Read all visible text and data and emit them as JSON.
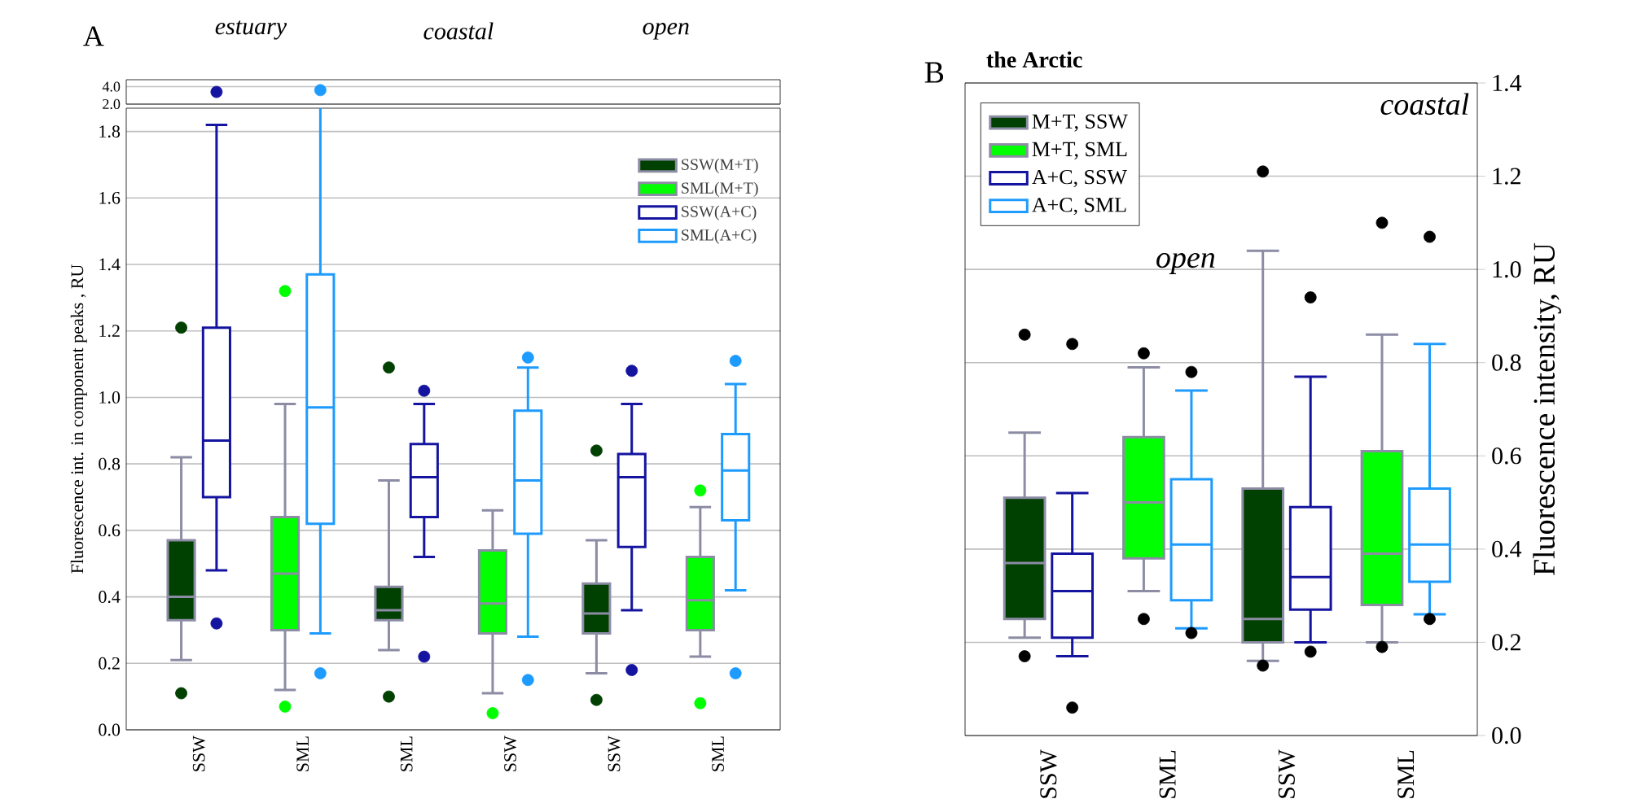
{
  "chart_data": [
    {
      "type": "box",
      "ylabel": "Fluorescence int. in component peaks , RU",
      "annotations": [
        "A",
        "estuary",
        "coastal",
        "open"
      ],
      "categories": [
        "SSW",
        "SML",
        "SML",
        "SSW",
        "SSW",
        "SML"
      ],
      "ylim": [
        0,
        1.87
      ],
      "yticks": [
        {
          "value": 0,
          "label": "0.0"
        },
        {
          "value": 0.2,
          "label": "0.2"
        },
        {
          "value": 0.4,
          "label": "0.4"
        },
        {
          "value": 0.6,
          "label": "0.6"
        },
        {
          "value": 0.8,
          "label": "0.8"
        },
        {
          "value": 1.0,
          "label": "1.0"
        },
        {
          "value": 1.2,
          "label": "1.2"
        },
        {
          "value": 1.4,
          "label": "1.4"
        },
        {
          "value": 1.6,
          "label": "1.6"
        },
        {
          "value": 1.8,
          "label": "1.8"
        }
      ],
      "grid": "y",
      "legend": "top right",
      "series": [
        {
          "name": "SSW(M+T)",
          "color": "#004000",
          "boxes": [
            {
              "low": 0.21,
              "q1": 0.33,
              "median": 0.4,
              "q3": 0.57,
              "high": 0.82,
              "outliers": [
                1.21,
                0.11
              ]
            },
            null,
            {
              "low": 0.24,
              "q1": 0.33,
              "median": 0.36,
              "q3": 0.43,
              "high": 0.75,
              "outliers": [
                1.09,
                0.1
              ]
            },
            null,
            {
              "low": 0.17,
              "q1": 0.29,
              "median": 0.35,
              "q3": 0.44,
              "high": 0.57,
              "outliers": [
                0.84,
                0.09
              ]
            },
            null
          ]
        },
        {
          "name": "SML(M+T)",
          "color": "#00ff00",
          "boxes": [
            null,
            {
              "low": 0.12,
              "q1": 0.3,
              "median": 0.47,
              "q3": 0.64,
              "high": 0.98,
              "outliers": [
                1.32,
                0.07
              ]
            },
            null,
            {
              "low": 0.11,
              "q1": 0.29,
              "median": 0.38,
              "q3": 0.54,
              "high": 0.66,
              "outliers": [
                0.05
              ]
            },
            null,
            {
              "low": 0.22,
              "q1": 0.3,
              "median": 0.39,
              "q3": 0.52,
              "high": 0.67,
              "outliers": [
                0.72,
                0.08
              ]
            }
          ]
        },
        {
          "name": "SSW(A+C)",
          "color": "#1414a0",
          "boxes": [
            {
              "low": 0.48,
              "q1": 0.7,
              "median": 0.87,
              "q3": 1.21,
              "high": 1.82,
              "outliers": [
                0.32
              ]
            },
            null,
            {
              "low": 0.52,
              "q1": 0.64,
              "median": 0.76,
              "q3": 0.86,
              "high": 0.98,
              "outliers": [
                1.02,
                0.22
              ]
            },
            null,
            {
              "low": 0.36,
              "q1": 0.55,
              "median": 0.76,
              "q3": 0.83,
              "high": 0.98,
              "outliers": [
                1.08,
                0.18
              ]
            },
            null
          ]
        },
        {
          "name": "SML(A+C)",
          "color": "#1e9bff",
          "boxes": [
            null,
            {
              "low": 0.29,
              "q1": 0.62,
              "median": 0.97,
              "q3": 1.37,
              "high": 2.4,
              "outliers": [
                0.17
              ]
            },
            null,
            {
              "low": 0.28,
              "q1": 0.59,
              "median": 0.75,
              "q3": 0.96,
              "high": 1.09,
              "outliers": [
                1.12,
                0.15
              ]
            },
            null,
            {
              "low": 0.42,
              "q1": 0.63,
              "median": 0.78,
              "q3": 0.89,
              "high": 1.04,
              "outliers": [
                1.11,
                0.17
              ]
            }
          ]
        }
      ]
    },
    {
      "type": "scatter",
      "categories": [
        null,
        null,
        null,
        null,
        null,
        null
      ],
      "ylim": [
        2.0,
        4.8
      ],
      "yticks": [
        {
          "value": 2.0,
          "label": "2.0"
        },
        {
          "value": 4.0,
          "label": "4.0"
        }
      ],
      "grid": "y",
      "tick_labels": "y",
      "marker": "circle",
      "series": [
        {
          "color": "#1414a0",
          "values": [
            3.4,
            null,
            null,
            null,
            null,
            null
          ]
        },
        {
          "color": "#1e9bff",
          "values": [
            null,
            3.6,
            null,
            null,
            null,
            null
          ]
        }
      ]
    },
    {
      "type": "box",
      "title": "the Arctic",
      "ylabel": "Fluorescence intensity, RU",
      "annotations": [
        "B",
        "open",
        "coastal"
      ],
      "categories": [
        "SSW",
        "SML",
        "SSW",
        "SML"
      ],
      "ylim": [
        0,
        1.4
      ],
      "yticks": [
        {
          "value": 0,
          "label": "0.0"
        },
        {
          "value": 0.2,
          "label": "0.2"
        },
        {
          "value": 0.4,
          "label": "0.4"
        },
        {
          "value": 0.6,
          "label": "0.6"
        },
        {
          "value": 0.8,
          "label": "0.8"
        },
        {
          "value": 1.0,
          "label": "1.0"
        },
        {
          "value": 1.2,
          "label": "1.2"
        },
        {
          "value": 1.4,
          "label": "1.4"
        }
      ],
      "grid": "y",
      "legend": "top left",
      "series": [
        {
          "name": "M+T, SSW",
          "color": "#004000",
          "boxes": [
            {
              "low": 0.21,
              "q1": 0.25,
              "median": 0.37,
              "q3": 0.51,
              "high": 0.65,
              "outliers": [
                0.86,
                0.17
              ]
            },
            null,
            {
              "low": 0.16,
              "q1": 0.2,
              "median": 0.25,
              "q3": 0.53,
              "high": 1.04,
              "outliers": [
                1.21,
                0.15
              ]
            },
            null
          ]
        },
        {
          "name": "M+T, SML",
          "color": "#00ff00",
          "boxes": [
            null,
            {
              "low": 0.31,
              "q1": 0.38,
              "median": 0.5,
              "q3": 0.64,
              "high": 0.79,
              "outliers": [
                0.82,
                0.25
              ]
            },
            null,
            {
              "low": 0.2,
              "q1": 0.28,
              "median": 0.39,
              "q3": 0.61,
              "high": 0.86,
              "outliers": [
                1.1,
                0.19
              ]
            }
          ]
        },
        {
          "name": "A+C, SSW",
          "color": "#1414a0",
          "boxes": [
            {
              "low": 0.17,
              "q1": 0.21,
              "median": 0.31,
              "q3": 0.39,
              "high": 0.52,
              "outliers": [
                0.84,
                0.06
              ]
            },
            null,
            {
              "low": 0.2,
              "q1": 0.27,
              "median": 0.34,
              "q3": 0.49,
              "high": 0.77,
              "outliers": [
                0.94,
                0.18
              ]
            },
            null
          ]
        },
        {
          "name": "A+C, SML",
          "color": "#1e9bff",
          "boxes": [
            null,
            {
              "low": 0.23,
              "q1": 0.29,
              "median": 0.41,
              "q3": 0.55,
              "high": 0.74,
              "outliers": [
                0.78,
                0.22
              ]
            },
            null,
            {
              "low": 0.26,
              "q1": 0.33,
              "median": 0.41,
              "q3": 0.53,
              "high": 0.84,
              "outliers": [
                1.07,
                0.25
              ]
            }
          ]
        }
      ]
    }
  ]
}
